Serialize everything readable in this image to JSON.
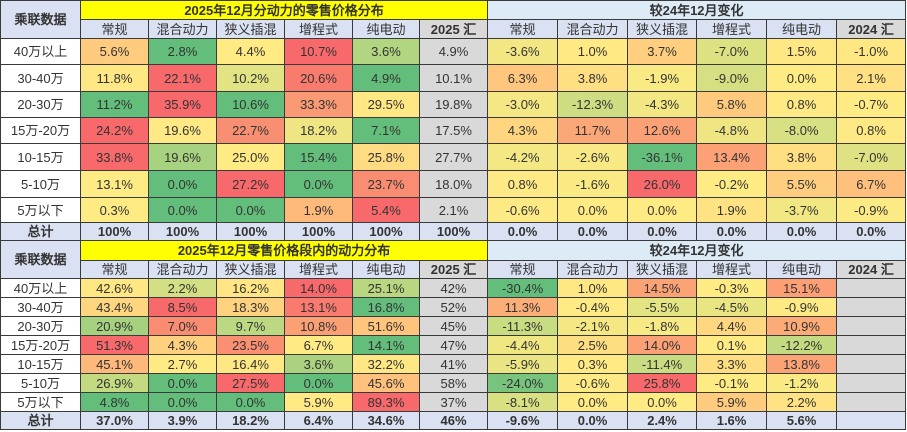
{
  "theme": {
    "title_bg": "#FFFF00",
    "title_text": "#FF0000",
    "change_title_bg": "#DDEBF7",
    "header_bg": "#D9E1F2",
    "sum_col_bg": "#D9D9D9",
    "total_row_bg": "#D9E1F2",
    "scale_low": "#63BE7B",
    "scale_mid": "#FFEB84",
    "scale_high": "#F8696B"
  },
  "chart_data": [
    {
      "type": "heatmap",
      "title": "2025年12月分动力的零售价格分布",
      "row_header": "乘联数据",
      "columns": [
        "常规",
        "混合动力",
        "狭义插混",
        "增程式",
        "纯电动",
        "2025 汇"
      ],
      "rows": [
        "40万以上",
        "30-40万",
        "20-30万",
        "15万-20万",
        "10-15万",
        "5-10万",
        "5万以下",
        "总计"
      ],
      "values": [
        [
          "5.6%",
          "2.8%",
          "4.4%",
          "10.7%",
          "3.6%",
          "4.9%"
        ],
        [
          "11.8%",
          "22.1%",
          "10.2%",
          "20.6%",
          "4.9%",
          "10.1%"
        ],
        [
          "11.2%",
          "35.9%",
          "10.6%",
          "33.3%",
          "29.5%",
          "19.8%"
        ],
        [
          "24.2%",
          "19.6%",
          "22.7%",
          "18.2%",
          "7.1%",
          "17.5%"
        ],
        [
          "33.8%",
          "19.6%",
          "25.0%",
          "15.4%",
          "25.8%",
          "27.7%"
        ],
        [
          "13.1%",
          "0.0%",
          "27.2%",
          "0.0%",
          "23.7%",
          "18.0%"
        ],
        [
          "0.3%",
          "0.0%",
          "0.0%",
          "1.9%",
          "5.4%",
          "2.1%"
        ],
        [
          "100%",
          "100%",
          "100%",
          "100%",
          "100%",
          "100%"
        ]
      ],
      "colors": [
        [
          "#FFCB7E",
          "#63BE7B",
          "#FFEA84",
          "#F8696B",
          "#B1D580",
          "#D9D9D9"
        ],
        [
          "#FFE784",
          "#F8696B",
          "#E2E383",
          "#F97B6E",
          "#63BE7B",
          "#D9D9D9"
        ],
        [
          "#63BE7B",
          "#F8696B",
          "#63BE7B",
          "#FA9A74",
          "#FFE884",
          "#D9D9D9"
        ],
        [
          "#F8696B",
          "#FFE984",
          "#F98F72",
          "#EFE683",
          "#63BE7B",
          "#D9D9D9"
        ],
        [
          "#F8696B",
          "#A7D27F",
          "#FFEB84",
          "#63BE7B",
          "#FFDC81",
          "#D9D9D9"
        ],
        [
          "#FFEB84",
          "#63BE7B",
          "#F8696B",
          "#63BE7B",
          "#F98C71",
          "#D9D9D9"
        ],
        [
          "#FFEB84",
          "#63BE7B",
          "#63BE7B",
          "#FDBA7B",
          "#F8696B",
          "#D9D9D9"
        ],
        [
          "#D9E1F2",
          "#D9E1F2",
          "#D9E1F2",
          "#D9E1F2",
          "#D9E1F2",
          "#D9E1F2"
        ]
      ]
    },
    {
      "type": "heatmap",
      "title": "较24年12月变化",
      "columns": [
        "常规",
        "混合动力",
        "狭义插混",
        "增程式",
        "纯电动",
        "2024 汇"
      ],
      "rows": [
        "40万以上",
        "30-40万",
        "20-30万",
        "15万-20万",
        "10-15万",
        "5-10万",
        "5万以下",
        "总计"
      ],
      "values": [
        [
          "-3.6%",
          "1.0%",
          "3.7%",
          "-7.0%",
          "1.5%",
          "-1.0%"
        ],
        [
          "6.3%",
          "3.8%",
          "-1.9%",
          "-9.0%",
          "0.0%",
          "2.1%"
        ],
        [
          "-3.0%",
          "-12.3%",
          "-4.3%",
          "5.8%",
          "0.8%",
          "-0.7%"
        ],
        [
          "4.3%",
          "11.7%",
          "12.6%",
          "-4.8%",
          "-8.0%",
          "0.8%"
        ],
        [
          "-4.2%",
          "-2.6%",
          "-36.1%",
          "13.4%",
          "3.8%",
          "-7.0%"
        ],
        [
          "0.8%",
          "-1.6%",
          "26.0%",
          "-0.2%",
          "5.5%",
          "6.7%"
        ],
        [
          "-0.6%",
          "0.0%",
          "0.0%",
          "1.9%",
          "-3.7%",
          "-0.9%"
        ],
        [
          "0.0%",
          "0.0%",
          "0.0%",
          "0.0%",
          "0.0%",
          "0.0%"
        ]
      ],
      "colors": [
        [
          "#F2E783",
          "#FFE984",
          "#FFCF7F",
          "#DCE182",
          "#FFE884",
          "#FFE784"
        ],
        [
          "#FFC67D",
          "#FFDF82",
          "#FAEA84",
          "#D6E082",
          "#FFEB84",
          "#FFE082"
        ],
        [
          "#F5E884",
          "#CEDD81",
          "#F2E783",
          "#FFCA7E",
          "#FFE984",
          "#FFEB84"
        ],
        [
          "#FFD580",
          "#FCA777",
          "#FCA176",
          "#EFE683",
          "#D7E082",
          "#FFE984"
        ],
        [
          "#F3E884",
          "#F8E984",
          "#63BE7B",
          "#FCA075",
          "#FFDF82",
          "#DEE282"
        ],
        [
          "#FFE984",
          "#FAEA84",
          "#F8696B",
          "#FFEB84",
          "#FFCD7F",
          "#FFC07D"
        ],
        [
          "#FDEA84",
          "#FFEB84",
          "#FFEB84",
          "#FFE383",
          "#F1E783",
          "#FCEA84"
        ],
        [
          "#D9E1F2",
          "#D9E1F2",
          "#D9E1F2",
          "#D9E1F2",
          "#D9E1F2",
          "#D9E1F2"
        ]
      ]
    },
    {
      "type": "heatmap",
      "title": "2025年12月零售价格段内的动力分布",
      "row_header": "乘联数据",
      "columns": [
        "常规",
        "混合动力",
        "狭义插混",
        "增程式",
        "纯电动",
        "2025 汇"
      ],
      "rows": [
        "40万以上",
        "30-40万",
        "20-30万",
        "15万-20万",
        "10-15万",
        "5-10万",
        "5万以下",
        "总计"
      ],
      "values": [
        [
          "42.6%",
          "2.2%",
          "16.2%",
          "14.0%",
          "25.1%",
          "42%"
        ],
        [
          "43.4%",
          "8.5%",
          "18.3%",
          "13.1%",
          "16.8%",
          "52%"
        ],
        [
          "20.9%",
          "7.0%",
          "9.7%",
          "10.8%",
          "51.6%",
          "45%"
        ],
        [
          "51.3%",
          "4.3%",
          "23.5%",
          "6.7%",
          "14.1%",
          "47%"
        ],
        [
          "45.1%",
          "2.7%",
          "16.4%",
          "3.6%",
          "32.2%",
          "41%"
        ],
        [
          "26.9%",
          "0.0%",
          "27.5%",
          "0.0%",
          "45.6%",
          "58%"
        ],
        [
          "4.8%",
          "0.0%",
          "0.0%",
          "5.9%",
          "89.3%",
          "37%"
        ],
        [
          "37.0%",
          "3.9%",
          "18.2%",
          "6.4%",
          "34.6%",
          "46%"
        ]
      ],
      "colors": [
        [
          "#FFE783",
          "#D3DF82",
          "#FFE583",
          "#F8696B",
          "#B9D780",
          "#D9D9D9"
        ],
        [
          "#FFD680",
          "#F8696B",
          "#FFD27F",
          "#F97A6E",
          "#63BE7B",
          "#D9D9D9"
        ],
        [
          "#A6D17F",
          "#F98C71",
          "#BCD880",
          "#FBA075",
          "#FFC57D",
          "#D9D9D9"
        ],
        [
          "#F8696B",
          "#FFD17F",
          "#FA8F72",
          "#FFEA84",
          "#63BE7B",
          "#D9D9D9"
        ],
        [
          "#FDB97B",
          "#FFEA84",
          "#FFE884",
          "#ABD27F",
          "#FFE884",
          "#D9D9D9"
        ],
        [
          "#C4DA81",
          "#63BE7B",
          "#F8696B",
          "#63BE7B",
          "#FFC27D",
          "#D9D9D9"
        ],
        [
          "#63BE7B",
          "#63BE7B",
          "#63BE7B",
          "#FFEA84",
          "#F8696B",
          "#D9D9D9"
        ],
        [
          "#D9E1F2",
          "#D9E1F2",
          "#D9E1F2",
          "#D9E1F2",
          "#D9E1F2",
          "#D9E1F2"
        ]
      ]
    },
    {
      "type": "heatmap",
      "title": "较24年12月变化",
      "columns": [
        "常规",
        "混合动力",
        "狭义插混",
        "增程式",
        "纯电动",
        "2024 汇"
      ],
      "rows": [
        "40万以上",
        "30-40万",
        "20-30万",
        "15万-20万",
        "10-15万",
        "5-10万",
        "5万以下",
        "总计"
      ],
      "values": [
        [
          "-30.4%",
          "1.0%",
          "14.5%",
          "-0.3%",
          "15.1%",
          ""
        ],
        [
          "11.3%",
          "-0.4%",
          "-5.5%",
          "-4.5%",
          "-0.9%",
          ""
        ],
        [
          "-11.3%",
          "-2.1%",
          "-1.8%",
          "4.4%",
          "10.9%",
          ""
        ],
        [
          "-4.4%",
          "2.5%",
          "14.0%",
          "0.1%",
          "-12.2%",
          ""
        ],
        [
          "-5.9%",
          "0.3%",
          "-11.4%",
          "3.3%",
          "13.8%",
          ""
        ],
        [
          "-24.0%",
          "-0.6%",
          "25.8%",
          "-0.1%",
          "-1.2%",
          ""
        ],
        [
          "-8.1%",
          "0.0%",
          "0.0%",
          "5.9%",
          "2.2%",
          ""
        ],
        [
          "-9.6%",
          "0.0%",
          "2.4%",
          "1.6%",
          "5.6%",
          ""
        ]
      ],
      "colors": [
        [
          "#63BE7B",
          "#FFE784",
          "#FCA376",
          "#FFEB84",
          "#FC9F75",
          "#D9D9D9"
        ],
        [
          "#FCAE78",
          "#FFEB84",
          "#E5E483",
          "#E9E583",
          "#FEEA84",
          "#D9D9D9"
        ],
        [
          "#C8DC81",
          "#F5E884",
          "#F7E984",
          "#FFD780",
          "#FCAB77",
          "#D9D9D9"
        ],
        [
          "#F0E783",
          "#FFDD81",
          "#FCA075",
          "#FFEB84",
          "#C4DA81",
          "#D9D9D9"
        ],
        [
          "#EAE583",
          "#FFEA84",
          "#C9DC81",
          "#FFDE81",
          "#FCA376",
          "#D9D9D9"
        ],
        [
          "#78C47C",
          "#FDEA84",
          "#F8696B",
          "#FFEB84",
          "#FAEA84",
          "#D9D9D9"
        ],
        [
          "#D8E082",
          "#FFEB84",
          "#FFEB84",
          "#FFCB7E",
          "#FFE283",
          "#D9D9D9"
        ],
        [
          "#D9E1F2",
          "#D9E1F2",
          "#D9E1F2",
          "#D9E1F2",
          "#D9E1F2",
          "#D9E1F2"
        ]
      ]
    }
  ]
}
